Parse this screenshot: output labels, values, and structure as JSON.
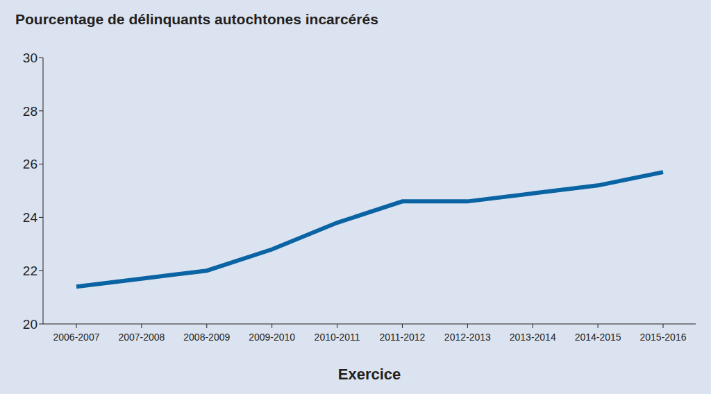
{
  "chart_data": {
    "type": "line",
    "title": "Pourcentage de délinquants autochtones incarcérés",
    "x_label": "Exercice",
    "categories": [
      "2006-2007",
      "2007-2008",
      "2008-2009",
      "2009-2010",
      "2010-2011",
      "2011-2012",
      "2012-2013",
      "2013-2014",
      "2014-2015",
      "2015-2016"
    ],
    "values": [
      21.4,
      21.7,
      22.0,
      22.8,
      23.8,
      24.6,
      24.6,
      24.9,
      25.2,
      25.7
    ],
    "color": "#0a64a4",
    "ylim": [
      20,
      30
    ],
    "yticks": [
      20,
      22,
      24,
      26,
      28,
      30
    ],
    "grid": false
  }
}
